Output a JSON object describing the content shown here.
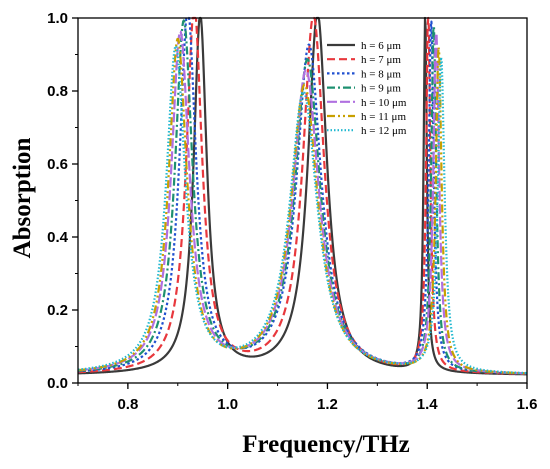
{
  "chart_data": {
    "type": "line",
    "xlabel": "Frequency/THz",
    "ylabel": "Absorption",
    "xlim": [
      0.7,
      1.6
    ],
    "ylim": [
      0.0,
      1.0
    ],
    "x_ticks": [
      "0.8",
      "1.0",
      "1.2",
      "1.4",
      "1.6"
    ],
    "y_ticks": [
      "0.0",
      "0.2",
      "0.4",
      "0.6",
      "0.8",
      "1.0"
    ],
    "grid": false,
    "legend_position": "top-right",
    "background": 0.02,
    "series": [
      {
        "name": "h = 6 μm",
        "color": "#3a3a3a",
        "dash": "solid",
        "peaks": [
          [
            0.945,
            0.98,
            0.016
          ],
          [
            1.18,
            0.99,
            0.023
          ],
          [
            1.396,
            0.98,
            0.004
          ]
        ]
      },
      {
        "name": "h = 7 μm",
        "color": "#e8383d",
        "dash": "dash",
        "peaks": [
          [
            0.933,
            1.0,
            0.019
          ],
          [
            1.172,
            0.98,
            0.026
          ],
          [
            1.402,
            1.0,
            0.005
          ]
        ]
      },
      {
        "name": "h = 8 μm",
        "color": "#2050d0",
        "dash": "dot",
        "peaks": [
          [
            0.92,
            0.99,
            0.02
          ],
          [
            1.163,
            0.9,
            0.03
          ],
          [
            1.408,
            0.96,
            0.006
          ]
        ]
      },
      {
        "name": "h = 9 μm",
        "color": "#1e9070",
        "dash": "dashdot",
        "peaks": [
          [
            0.912,
            0.96,
            0.021
          ],
          [
            1.16,
            0.86,
            0.031
          ],
          [
            1.413,
            0.95,
            0.006
          ]
        ]
      },
      {
        "name": "h = 10 μm",
        "color": "#b070e0",
        "dash": "longdash",
        "peaks": [
          [
            0.905,
            0.93,
            0.022
          ],
          [
            1.157,
            0.83,
            0.032
          ],
          [
            1.418,
            0.93,
            0.007
          ]
        ]
      },
      {
        "name": "h = 11 μm",
        "color": "#c8a000",
        "dash": "dashdotdot",
        "peaks": [
          [
            0.9,
            0.91,
            0.022
          ],
          [
            1.154,
            0.79,
            0.033
          ],
          [
            1.423,
            0.89,
            0.007
          ]
        ]
      },
      {
        "name": "h = 12 μm",
        "color": "#20b8d0",
        "dash": "shortdot",
        "peaks": [
          [
            0.896,
            0.89,
            0.023
          ],
          [
            1.152,
            0.77,
            0.034
          ],
          [
            1.428,
            0.86,
            0.008
          ]
        ]
      }
    ]
  }
}
